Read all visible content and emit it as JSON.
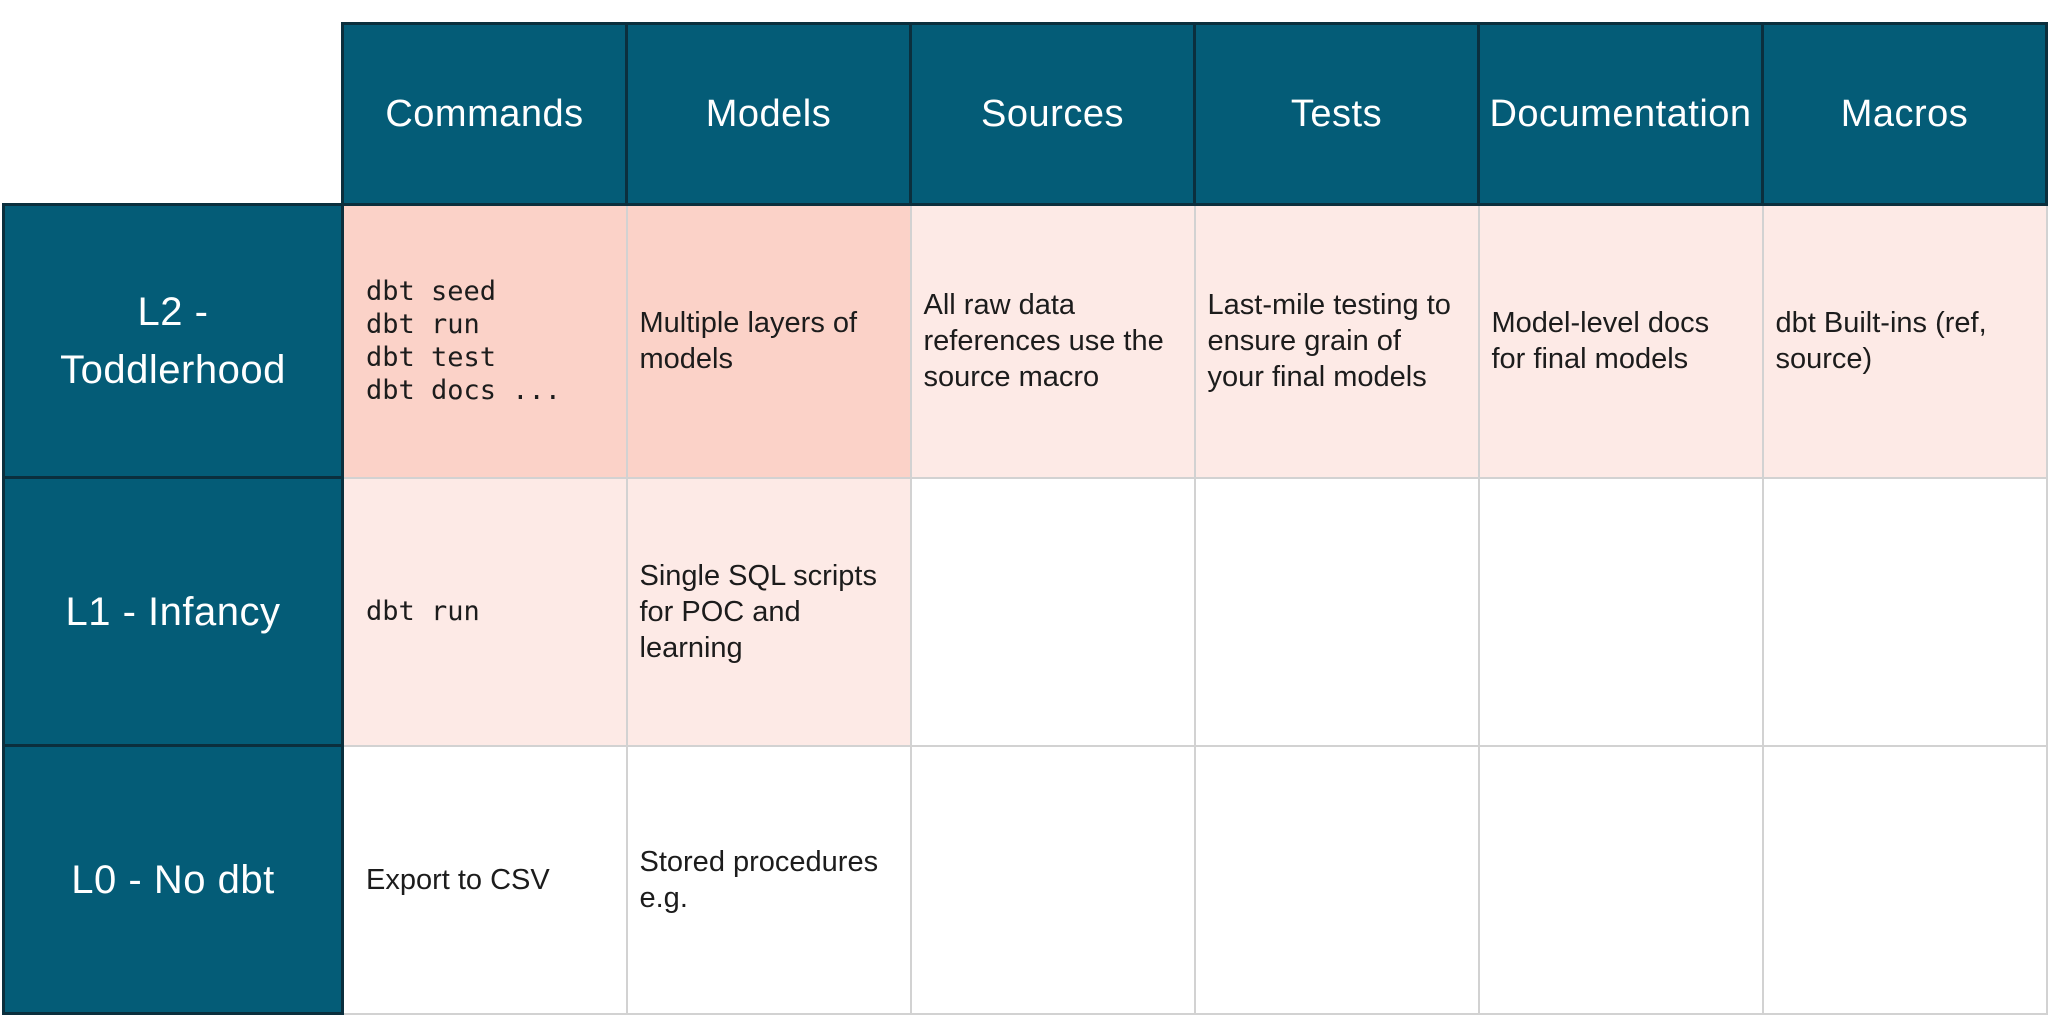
{
  "page": {
    "background": "#ffffff"
  },
  "colors": {
    "header_teal": "#045c77",
    "header_border": "#0b2f3d",
    "header_text": "#ffffff",
    "cell_salmon": "#fbd2c8",
    "cell_pink": "#fdeae6",
    "cell_white": "#ffffff",
    "grid_line": "#d2d2d2",
    "cell_text": "#1c1c1c"
  },
  "table": {
    "column_headers": [
      "Commands",
      "Models",
      "Sources",
      "Tests",
      "Documentation",
      "Macros"
    ],
    "rows": [
      {
        "header": "L2 - Toddlerhood",
        "cells": [
          {
            "column": "Commands",
            "text": "dbt seed\ndbt run\ndbt test\ndbt docs ...",
            "style": "code",
            "bg": "salmon"
          },
          {
            "column": "Models",
            "text": "Multiple layers of models",
            "style": "text",
            "bg": "salmon"
          },
          {
            "column": "Sources",
            "text": "All raw data references use the source macro",
            "style": "text",
            "bg": "pink"
          },
          {
            "column": "Tests",
            "text": "Last-mile testing to ensure grain of your final models",
            "style": "text",
            "bg": "pink"
          },
          {
            "column": "Documentation",
            "text": "Model-level docs for final models",
            "style": "text",
            "bg": "pink"
          },
          {
            "column": "Macros",
            "text": "dbt Built-ins (ref, source)",
            "style": "text",
            "bg": "pink"
          }
        ]
      },
      {
        "header": "L1 - Infancy",
        "cells": [
          {
            "column": "Commands",
            "text": "dbt run",
            "style": "code",
            "bg": "pink"
          },
          {
            "column": "Models",
            "text": "Single SQL scripts for POC and learning",
            "style": "text",
            "bg": "pink"
          },
          {
            "column": "Sources",
            "text": "",
            "style": "text",
            "bg": "white"
          },
          {
            "column": "Tests",
            "text": "",
            "style": "text",
            "bg": "white"
          },
          {
            "column": "Documentation",
            "text": "",
            "style": "text",
            "bg": "white"
          },
          {
            "column": "Macros",
            "text": "",
            "style": "text",
            "bg": "white"
          }
        ]
      },
      {
        "header": "L0 - No dbt",
        "cells": [
          {
            "column": "Commands",
            "text": "Export to CSV",
            "style": "text",
            "bg": "white"
          },
          {
            "column": "Models",
            "text": "Stored procedures e.g.",
            "style": "text",
            "bg": "white"
          },
          {
            "column": "Sources",
            "text": "",
            "style": "text",
            "bg": "white"
          },
          {
            "column": "Tests",
            "text": "",
            "style": "text",
            "bg": "white"
          },
          {
            "column": "Documentation",
            "text": "",
            "style": "text",
            "bg": "white"
          },
          {
            "column": "Macros",
            "text": "",
            "style": "text",
            "bg": "white"
          }
        ]
      }
    ]
  }
}
